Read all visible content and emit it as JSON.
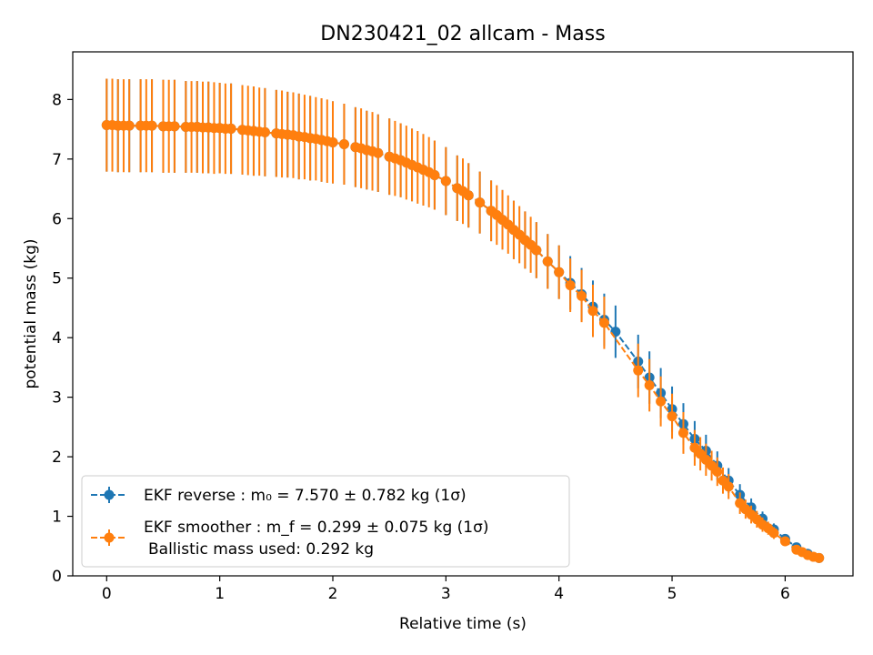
{
  "chart_data": {
    "type": "scatter",
    "title": "DN230421_02 allcam - Mass",
    "xlabel": "Relative time (s)",
    "ylabel": "potential mass (kg)",
    "xlim": [
      -0.3,
      6.6
    ],
    "ylim": [
      0,
      8.8
    ],
    "xticks": [
      "0",
      "1",
      "2",
      "3",
      "4",
      "5",
      "6"
    ],
    "yticks": [
      "0",
      "1",
      "2",
      "3",
      "4",
      "5",
      "6",
      "7",
      "8"
    ],
    "grid": false,
    "legend_position": "lower-left",
    "legend": {
      "reverse_label": "EKF reverse : m₀ =  7.570 ± 0.782 kg (1σ)",
      "smoother_label": "EKF smoother : m_f =  0.299 ± 0.075 kg (1σ)",
      "ballistic_label": "Ballistic mass used: 0.292 kg"
    },
    "series": [
      {
        "name": "EKF reverse",
        "color": "#1f77b4",
        "style": "dashed line with circle markers and error bars",
        "points": [
          [
            0.0,
            7.57,
            0.78
          ],
          [
            0.1,
            7.56,
            0.78
          ],
          [
            0.2,
            7.56,
            0.78
          ],
          [
            0.3,
            7.56,
            0.78
          ],
          [
            0.4,
            7.56,
            0.78
          ],
          [
            0.5,
            7.55,
            0.78
          ],
          [
            0.6,
            7.55,
            0.78
          ],
          [
            0.7,
            7.54,
            0.77
          ],
          [
            0.8,
            7.54,
            0.77
          ],
          [
            0.9,
            7.53,
            0.77
          ],
          [
            1.0,
            7.52,
            0.76
          ],
          [
            1.1,
            7.51,
            0.76
          ],
          [
            1.2,
            7.49,
            0.75
          ],
          [
            1.3,
            7.47,
            0.75
          ],
          [
            1.4,
            7.45,
            0.74
          ],
          [
            1.5,
            7.43,
            0.73
          ],
          [
            1.6,
            7.41,
            0.72
          ],
          [
            1.7,
            7.38,
            0.72
          ],
          [
            1.8,
            7.35,
            0.71
          ],
          [
            1.9,
            7.32,
            0.7
          ],
          [
            2.0,
            7.28,
            0.69
          ],
          [
            2.1,
            7.25,
            0.68
          ],
          [
            2.2,
            7.2,
            0.67
          ],
          [
            2.3,
            7.15,
            0.66
          ],
          [
            2.4,
            7.1,
            0.65
          ],
          [
            2.5,
            7.04,
            0.64
          ],
          [
            2.6,
            6.98,
            0.62
          ],
          [
            2.7,
            6.9,
            0.61
          ],
          [
            2.8,
            6.82,
            0.6
          ],
          [
            2.9,
            6.73,
            0.58
          ],
          [
            3.0,
            6.63,
            0.57
          ],
          [
            3.1,
            6.51,
            0.55
          ],
          [
            3.2,
            6.39,
            0.54
          ],
          [
            3.3,
            6.27,
            0.52
          ],
          [
            3.4,
            6.13,
            0.51
          ],
          [
            3.5,
            5.98,
            0.5
          ],
          [
            3.6,
            5.81,
            0.49
          ],
          [
            3.7,
            5.64,
            0.48
          ],
          [
            3.8,
            5.47,
            0.47
          ],
          [
            3.9,
            5.28,
            0.46
          ],
          [
            4.0,
            5.1,
            0.45
          ],
          [
            4.1,
            4.92,
            0.45
          ],
          [
            4.2,
            4.73,
            0.44
          ],
          [
            4.3,
            4.52,
            0.44
          ],
          [
            4.4,
            4.3,
            0.44
          ],
          [
            4.5,
            4.1,
            0.44
          ],
          [
            4.7,
            3.6,
            0.45
          ],
          [
            4.8,
            3.33,
            0.44
          ],
          [
            4.9,
            3.07,
            0.42
          ],
          [
            5.0,
            2.8,
            0.38
          ],
          [
            5.1,
            2.55,
            0.35
          ],
          [
            5.2,
            2.3,
            0.3
          ],
          [
            5.3,
            2.1,
            0.27
          ],
          [
            5.4,
            1.85,
            0.24
          ],
          [
            5.5,
            1.6,
            0.21
          ],
          [
            5.6,
            1.36,
            0.18
          ],
          [
            5.7,
            1.15,
            0.15
          ],
          [
            5.8,
            0.96,
            0.12
          ],
          [
            5.9,
            0.78,
            0.1
          ],
          [
            6.0,
            0.62,
            0.08
          ],
          [
            6.1,
            0.48,
            0.07
          ],
          [
            6.2,
            0.37,
            0.07
          ],
          [
            6.3,
            0.3,
            0.075
          ]
        ]
      },
      {
        "name": "EKF smoother",
        "color": "#ff7f0e",
        "style": "dashed line with circle markers and error bars",
        "points": [
          [
            0.0,
            7.57,
            0.78
          ],
          [
            0.05,
            7.57,
            0.78
          ],
          [
            0.1,
            7.56,
            0.78
          ],
          [
            0.15,
            7.56,
            0.78
          ],
          [
            0.2,
            7.56,
            0.78
          ],
          [
            0.3,
            7.56,
            0.78
          ],
          [
            0.35,
            7.56,
            0.78
          ],
          [
            0.4,
            7.56,
            0.78
          ],
          [
            0.5,
            7.55,
            0.78
          ],
          [
            0.55,
            7.55,
            0.78
          ],
          [
            0.6,
            7.55,
            0.78
          ],
          [
            0.7,
            7.54,
            0.77
          ],
          [
            0.75,
            7.54,
            0.77
          ],
          [
            0.8,
            7.54,
            0.77
          ],
          [
            0.85,
            7.53,
            0.77
          ],
          [
            0.9,
            7.53,
            0.77
          ],
          [
            0.95,
            7.52,
            0.77
          ],
          [
            1.0,
            7.52,
            0.76
          ],
          [
            1.05,
            7.51,
            0.76
          ],
          [
            1.1,
            7.51,
            0.76
          ],
          [
            1.2,
            7.49,
            0.75
          ],
          [
            1.25,
            7.48,
            0.75
          ],
          [
            1.3,
            7.47,
            0.75
          ],
          [
            1.35,
            7.46,
            0.74
          ],
          [
            1.4,
            7.45,
            0.74
          ],
          [
            1.5,
            7.43,
            0.73
          ],
          [
            1.55,
            7.42,
            0.73
          ],
          [
            1.6,
            7.41,
            0.72
          ],
          [
            1.65,
            7.4,
            0.72
          ],
          [
            1.7,
            7.38,
            0.72
          ],
          [
            1.75,
            7.37,
            0.71
          ],
          [
            1.8,
            7.35,
            0.71
          ],
          [
            1.85,
            7.34,
            0.7
          ],
          [
            1.9,
            7.32,
            0.7
          ],
          [
            1.95,
            7.3,
            0.7
          ],
          [
            2.0,
            7.28,
            0.69
          ],
          [
            2.1,
            7.25,
            0.68
          ],
          [
            2.2,
            7.2,
            0.67
          ],
          [
            2.25,
            7.18,
            0.67
          ],
          [
            2.3,
            7.15,
            0.66
          ],
          [
            2.35,
            7.13,
            0.66
          ],
          [
            2.4,
            7.1,
            0.65
          ],
          [
            2.5,
            7.04,
            0.64
          ],
          [
            2.55,
            7.01,
            0.63
          ],
          [
            2.6,
            6.98,
            0.62
          ],
          [
            2.65,
            6.94,
            0.62
          ],
          [
            2.7,
            6.9,
            0.61
          ],
          [
            2.75,
            6.86,
            0.61
          ],
          [
            2.8,
            6.82,
            0.6
          ],
          [
            2.85,
            6.78,
            0.59
          ],
          [
            2.9,
            6.73,
            0.58
          ],
          [
            3.0,
            6.63,
            0.57
          ],
          [
            3.1,
            6.51,
            0.55
          ],
          [
            3.15,
            6.46,
            0.55
          ],
          [
            3.2,
            6.39,
            0.54
          ],
          [
            3.3,
            6.27,
            0.52
          ],
          [
            3.4,
            6.13,
            0.51
          ],
          [
            3.45,
            6.06,
            0.5
          ],
          [
            3.5,
            5.98,
            0.5
          ],
          [
            3.55,
            5.9,
            0.49
          ],
          [
            3.6,
            5.81,
            0.49
          ],
          [
            3.65,
            5.73,
            0.48
          ],
          [
            3.7,
            5.64,
            0.48
          ],
          [
            3.75,
            5.56,
            0.47
          ],
          [
            3.8,
            5.47,
            0.47
          ],
          [
            3.9,
            5.28,
            0.46
          ],
          [
            4.0,
            5.1,
            0.45
          ],
          [
            4.1,
            4.88,
            0.45
          ],
          [
            4.2,
            4.7,
            0.44
          ],
          [
            4.3,
            4.45,
            0.44
          ],
          [
            4.4,
            4.25,
            0.44
          ],
          [
            4.7,
            3.45,
            0.45
          ],
          [
            4.8,
            3.2,
            0.44
          ],
          [
            4.9,
            2.93,
            0.42
          ],
          [
            5.0,
            2.68,
            0.38
          ],
          [
            5.1,
            2.4,
            0.35
          ],
          [
            5.2,
            2.15,
            0.3
          ],
          [
            5.25,
            2.05,
            0.28
          ],
          [
            5.3,
            1.95,
            0.27
          ],
          [
            5.35,
            1.85,
            0.25
          ],
          [
            5.4,
            1.75,
            0.24
          ],
          [
            5.45,
            1.6,
            0.22
          ],
          [
            5.5,
            1.5,
            0.21
          ],
          [
            5.6,
            1.22,
            0.18
          ],
          [
            5.65,
            1.12,
            0.16
          ],
          [
            5.7,
            1.03,
            0.15
          ],
          [
            5.75,
            0.95,
            0.14
          ],
          [
            5.8,
            0.86,
            0.12
          ],
          [
            5.85,
            0.8,
            0.11
          ],
          [
            5.9,
            0.72,
            0.1
          ],
          [
            6.0,
            0.58,
            0.08
          ],
          [
            6.1,
            0.44,
            0.07
          ],
          [
            6.15,
            0.4,
            0.07
          ],
          [
            6.2,
            0.35,
            0.07
          ],
          [
            6.25,
            0.32,
            0.07
          ],
          [
            6.3,
            0.3,
            0.075
          ]
        ]
      }
    ]
  }
}
